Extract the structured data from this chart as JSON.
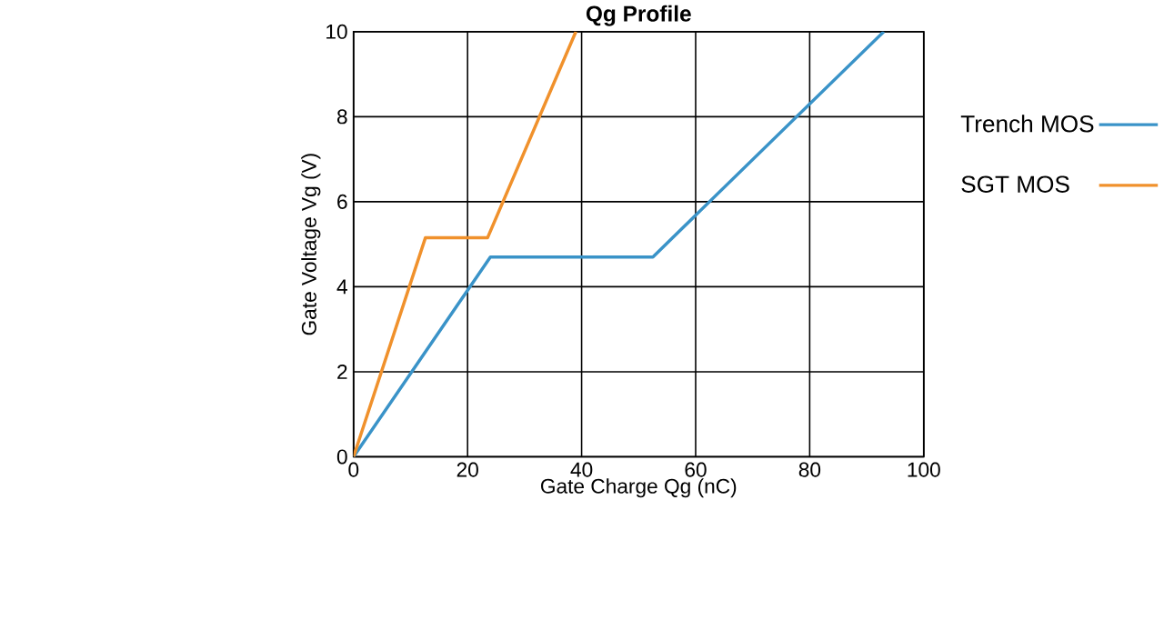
{
  "chart_data": {
    "type": "line",
    "title": "Qg Profile",
    "xlabel": "Gate Charge Qg (nC)",
    "ylabel": "Gate Voltage Vg (V)",
    "xlim": [
      0,
      100
    ],
    "ylim": [
      0,
      10
    ],
    "xticks": [
      0,
      20,
      40,
      60,
      80,
      100
    ],
    "yticks": [
      0,
      2,
      4,
      6,
      8,
      10
    ],
    "grid": true,
    "legend": "right",
    "marker": "none",
    "line_style": "solid",
    "series": [
      {
        "name": "Trench MOS",
        "color": "#3a93c8",
        "x": [
          0,
          24,
          52.5,
          93
        ],
        "values": [
          0,
          4.7,
          4.7,
          10
        ]
      },
      {
        "name": "SGT MOS",
        "color": "#f0912c",
        "x": [
          0,
          12.6,
          23.5,
          39
        ],
        "values": [
          0,
          5.15,
          5.15,
          10
        ]
      }
    ]
  }
}
